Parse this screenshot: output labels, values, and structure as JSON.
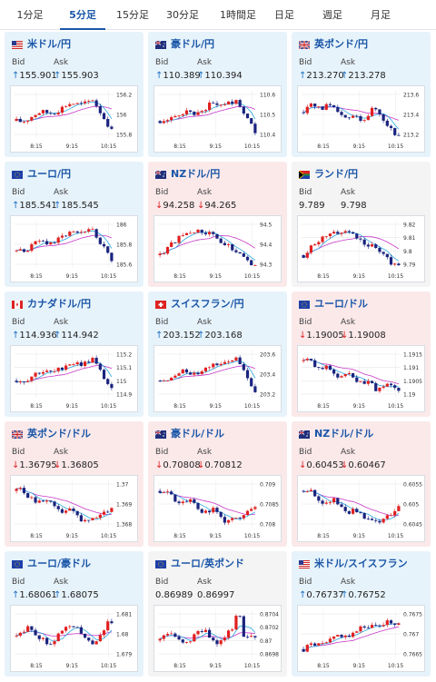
{
  "tabs": [
    "1分足",
    "5分足",
    "15分足",
    "30分足",
    "1時間足",
    "日足",
    "週足",
    "月足"
  ],
  "active_tab": 1,
  "labels": {
    "bid": "Bid",
    "ask": "Ask"
  },
  "time_ticks": [
    "8:15",
    "9:15",
    "10:15"
  ],
  "colors": {
    "up_card": "#e7f3fb",
    "down_card": "#fbe9ea",
    "candle_up": "#e02020",
    "candle_down": "#1a237e",
    "ma_fast": "#2aa8e0",
    "ma_slow": "#c838c8",
    "title": "#1a56a8"
  },
  "cards": [
    {
      "name": "米ドル/円",
      "dir": "up",
      "flag": "flag-us-icon",
      "bid": "155.901",
      "ask": "155.903",
      "arrow": "up",
      "yticks": [
        "156.2",
        "156",
        "155.8"
      ]
    },
    {
      "name": "豪ドル/円",
      "dir": "up",
      "flag": "flag-au-icon",
      "bid": "110.389",
      "ask": "110.394",
      "arrow": "up",
      "yticks": [
        "110.6",
        "110.5",
        "110.4"
      ]
    },
    {
      "name": "英ポンド/円",
      "dir": "up",
      "flag": "flag-gb-icon",
      "bid": "213.270",
      "ask": "213.278",
      "arrow": "up",
      "yticks": [
        "213.6",
        "213.4",
        "213.2"
      ]
    },
    {
      "name": "ユーロ/円",
      "dir": "up",
      "flag": "flag-eu-icon",
      "bid": "185.541",
      "ask": "185.545",
      "arrow": "up",
      "yticks": [
        "186",
        "185.8",
        "185.6"
      ]
    },
    {
      "name": "NZドル/円",
      "dir": "down",
      "flag": "flag-nz-icon",
      "bid": "94.258",
      "ask": "94.265",
      "arrow": "down",
      "yticks": [
        "94.5",
        "94.4",
        "94.3"
      ]
    },
    {
      "name": "ランド/円",
      "dir": "neutral",
      "flag": "flag-za-icon",
      "bid": "9.789",
      "ask": "9.798",
      "arrow": "",
      "yticks": [
        "9.82",
        "9.81",
        "9.8",
        "9.79"
      ]
    },
    {
      "name": "カナダドル/円",
      "dir": "up",
      "flag": "flag-ca-icon",
      "bid": "114.936",
      "ask": "114.942",
      "arrow": "up",
      "yticks": [
        "115.2",
        "115.1",
        "115",
        "114.9"
      ]
    },
    {
      "name": "スイスフラン/円",
      "dir": "up",
      "flag": "flag-ch-icon",
      "bid": "203.152",
      "ask": "203.168",
      "arrow": "up",
      "yticks": [
        "203.6",
        "203.4",
        "203.2"
      ]
    },
    {
      "name": "ユーロ/ドル",
      "dir": "down",
      "flag": "flag-eu-icon",
      "bid": "1.19005",
      "ask": "1.19008",
      "arrow": "down",
      "yticks": [
        "1.1915",
        "1.191",
        "1.1905",
        "1.19"
      ]
    },
    {
      "name": "英ポンド/ドル",
      "dir": "down",
      "flag": "flag-gb-icon",
      "bid": "1.36795",
      "ask": "1.36805",
      "arrow": "down",
      "yticks": [
        "1.37",
        "1.369",
        "1.368"
      ]
    },
    {
      "name": "豪ドル/ドル",
      "dir": "down",
      "flag": "flag-au-icon",
      "bid": "0.70808",
      "ask": "0.70812",
      "arrow": "down",
      "yticks": [
        "0.709",
        "0.7085",
        "0.708"
      ]
    },
    {
      "name": "NZドル/ドル",
      "dir": "down",
      "flag": "flag-nz-icon",
      "bid": "0.60453",
      "ask": "0.60467",
      "arrow": "down",
      "yticks": [
        "0.6055",
        "0.605",
        "0.6045"
      ]
    },
    {
      "name": "ユーロ/豪ドル",
      "dir": "up",
      "flag": "flag-eu-icon",
      "bid": "1.68061",
      "ask": "1.68075",
      "arrow": "up",
      "yticks": [
        "1.681",
        "1.68",
        "1.679"
      ]
    },
    {
      "name": "ユーロ/英ポンド",
      "dir": "neutral",
      "flag": "flag-eu-icon",
      "bid": "0.86989",
      "ask": "0.86997",
      "arrow": "",
      "yticks": [
        "0.8704",
        "0.8702",
        "0.87",
        "0.8698"
      ]
    },
    {
      "name": "米ドル/スイスフラン",
      "dir": "up",
      "flag": "flag-us-icon",
      "bid": "0.76737",
      "ask": "0.76752",
      "arrow": "up",
      "yticks": [
        "0.7675",
        "0.767",
        "0.7665"
      ]
    }
  ]
}
